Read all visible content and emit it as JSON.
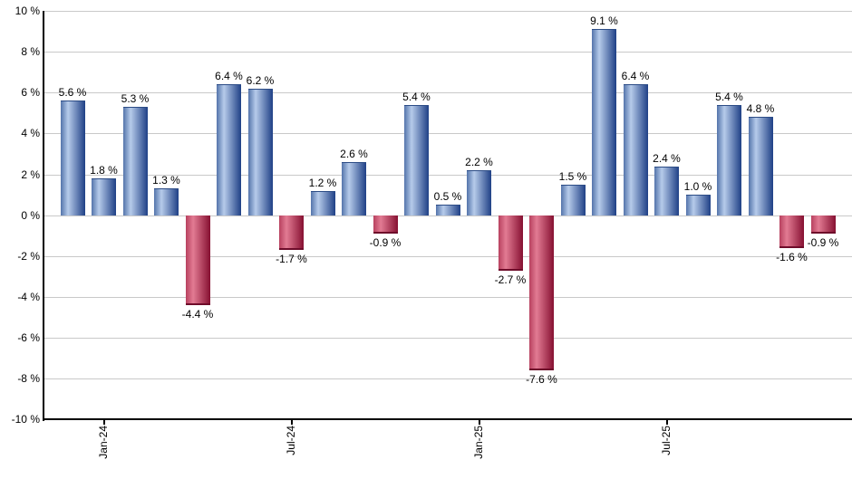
{
  "colors": {
    "background": "#ffffff",
    "grid": "#c9c9c9",
    "axis": "#000000",
    "text": "#000000",
    "positive_bar_gradient": [
      "#5474ab",
      "#b6cbea",
      "#1f4086"
    ],
    "positive_bar_cap": "#2c4c86",
    "negative_bar_gradient": [
      "#b8415f",
      "#e27b93",
      "#861031"
    ],
    "negative_bar_cap": "#6e0c2a"
  },
  "chart_data": {
    "type": "bar",
    "title": "",
    "xlabel": "",
    "ylabel": "",
    "ylim": [
      -10,
      10
    ],
    "ytick_step": 2,
    "grid": true,
    "legend": "none",
    "bar_color_rule": "positive bars blue, negative bars red",
    "yticks": [
      "10 %",
      "8 %",
      "6 %",
      "4 %",
      "2 %",
      "0 %",
      "-2 %",
      "-4 %",
      "-6 %",
      "-8 %",
      "-10 %"
    ],
    "xticks": [
      {
        "bar_index": 1,
        "label": "Jan-24"
      },
      {
        "bar_index": 7,
        "label": "Jul-24"
      },
      {
        "bar_index": 13,
        "label": "Jan-25"
      },
      {
        "bar_index": 19,
        "label": "Jul-25"
      }
    ],
    "x_axis_note": "monthly bars; labeled ticks every 6 months",
    "bars": [
      {
        "value": 5.6,
        "label": "5.6 %"
      },
      {
        "value": 1.8,
        "label": "1.8 %"
      },
      {
        "value": 5.3,
        "label": "5.3 %"
      },
      {
        "value": 1.3,
        "label": "1.3 %"
      },
      {
        "value": -4.4,
        "label": "-4.4 %"
      },
      {
        "value": 6.4,
        "label": "6.4 %"
      },
      {
        "value": 6.2,
        "label": "6.2 %"
      },
      {
        "value": -1.7,
        "label": "-1.7 %"
      },
      {
        "value": 1.2,
        "label": "1.2 %"
      },
      {
        "value": 2.6,
        "label": "2.6 %"
      },
      {
        "value": -0.9,
        "label": "-0.9 %"
      },
      {
        "value": 5.4,
        "label": "5.4 %"
      },
      {
        "value": 0.5,
        "label": "0.5 %"
      },
      {
        "value": 2.2,
        "label": "2.2 %"
      },
      {
        "value": -2.7,
        "label": "-2.7 %"
      },
      {
        "value": -7.6,
        "label": "-7.6 %"
      },
      {
        "value": 1.5,
        "label": "1.5 %"
      },
      {
        "value": 9.1,
        "label": "9.1 %"
      },
      {
        "value": 6.4,
        "label": "6.4 %"
      },
      {
        "value": 2.4,
        "label": "2.4 %"
      },
      {
        "value": 1.0,
        "label": "1.0 %"
      },
      {
        "value": 5.4,
        "label": "5.4 %"
      },
      {
        "value": 4.8,
        "label": "4.8 %"
      },
      {
        "value": -1.6,
        "label": "-1.6 %"
      },
      {
        "value": -0.9,
        "label": "-0.9 %"
      }
    ]
  }
}
